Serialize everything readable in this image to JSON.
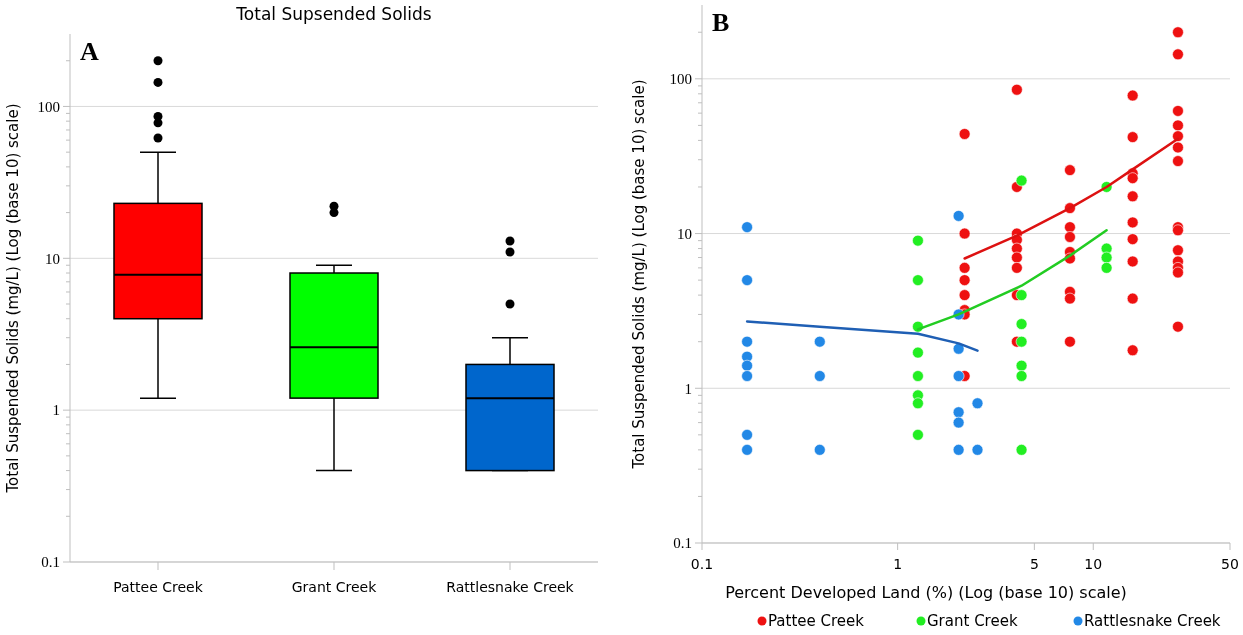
{
  "chart_data": [
    {
      "type": "box",
      "title": "Total Supsended Solids",
      "ylabel": "Total Suspended Solids (mg/L) (Log (base 10) scale)",
      "annotations": [
        "A"
      ],
      "categories": [
        "Pattee Creek",
        "Grant Creek",
        "Rattlesnake Creek"
      ],
      "colors": [
        "#ff0000",
        "#00ff00",
        "#0066cc"
      ],
      "boxes": [
        {
          "low": 1.2,
          "q1": 4,
          "median": 7.8,
          "q3": 23,
          "high": 50,
          "outliers": [
            200,
            144,
            86,
            78,
            62
          ]
        },
        {
          "low": 0.4,
          "q1": 1.2,
          "median": 2.6,
          "q3": 8,
          "high": 9,
          "outliers": [
            22,
            20
          ]
        },
        {
          "low": 0.4,
          "q1": 0.4,
          "median": 1.2,
          "q3": 2,
          "high": 3,
          "outliers": [
            13,
            11,
            5
          ]
        }
      ],
      "log": "y",
      "ylim": [
        0.1,
        300
      ],
      "yticks": [
        0.1,
        {
          "value": 0.2,
          "label": null
        },
        {
          "value": 0.3,
          "label": null
        },
        {
          "value": 0.4,
          "label": null
        },
        {
          "value": 0.5,
          "label": null
        },
        {
          "value": 0.6,
          "label": null
        },
        {
          "value": 0.7,
          "label": null
        },
        {
          "value": 0.8,
          "label": null
        },
        {
          "value": 0.9,
          "label": null
        },
        1,
        {
          "value": 2,
          "label": null
        },
        {
          "value": 3,
          "label": null
        },
        {
          "value": 4,
          "label": null
        },
        {
          "value": 5,
          "label": null
        },
        {
          "value": 6,
          "label": null
        },
        {
          "value": 7,
          "label": null
        },
        {
          "value": 8,
          "label": null
        },
        {
          "value": 9,
          "label": null
        },
        10,
        {
          "value": 20,
          "label": null
        },
        {
          "value": 30,
          "label": null
        },
        {
          "value": 40,
          "label": null
        },
        {
          "value": 50,
          "label": null
        },
        {
          "value": 60,
          "label": null
        },
        {
          "value": 70,
          "label": null
        },
        {
          "value": 80,
          "label": null
        },
        {
          "value": 90,
          "label": null
        },
        100,
        {
          "value": 200,
          "label": null
        }
      ],
      "grid": "y"
    },
    {
      "type": "scatter",
      "annotations": [
        "B"
      ],
      "xlabel": "Percent Developed Land (%) (Log (base 10) scale)",
      "ylabel": "Total Suspended Solids (mg/L) (Log (base 10) scale)",
      "log": "xy",
      "xlim": [
        0.1,
        50
      ],
      "xticks": [
        0.1,
        1,
        5,
        10,
        50
      ],
      "ylim": [
        0.1,
        300
      ],
      "yticks": [
        0.1,
        {
          "value": 0.2,
          "label": null
        },
        {
          "value": 0.3,
          "label": null
        },
        {
          "value": 0.4,
          "label": null
        },
        {
          "value": 0.5,
          "label": null
        },
        {
          "value": 0.6,
          "label": null
        },
        {
          "value": 0.7,
          "label": null
        },
        {
          "value": 0.8,
          "label": null
        },
        {
          "value": 0.9,
          "label": null
        },
        1,
        {
          "value": 2,
          "label": null
        },
        {
          "value": 3,
          "label": null
        },
        {
          "value": 4,
          "label": null
        },
        {
          "value": 5,
          "label": null
        },
        {
          "value": 6,
          "label": null
        },
        {
          "value": 7,
          "label": null
        },
        {
          "value": 8,
          "label": null
        },
        {
          "value": 9,
          "label": null
        },
        10,
        {
          "value": 20,
          "label": null
        },
        {
          "value": 30,
          "label": null
        },
        {
          "value": 40,
          "label": null
        },
        {
          "value": 50,
          "label": null
        },
        {
          "value": 60,
          "label": null
        },
        {
          "value": 70,
          "label": null
        },
        {
          "value": 80,
          "label": null
        },
        {
          "value": 90,
          "label": null
        },
        100,
        {
          "value": 200,
          "label": null
        }
      ],
      "grid": "y",
      "legend": "bottom",
      "series": [
        {
          "name": "Pattee Creek",
          "color": "#ee1111",
          "marker": "circle",
          "x": [
            2.2,
            2.2,
            2.2,
            2.2,
            2.2,
            2.2,
            2.2,
            2.2,
            4.07,
            4.07,
            4.07,
            4.07,
            4.07,
            4.07,
            4.07,
            4.07,
            4.07,
            7.6,
            7.6,
            7.6,
            7.6,
            7.6,
            7.6,
            7.6,
            7.6,
            7.6,
            15.9,
            15.9,
            15.9,
            15.9,
            15.9,
            15.9,
            15.9,
            15.9,
            15.9,
            15.9,
            27.1,
            27.1,
            27.1,
            27.1,
            27.1,
            27.1,
            27.1,
            27.1,
            27.1,
            27.1,
            27.1,
            27.1,
            27.1,
            27.1
          ],
          "values": [
            44,
            10,
            6,
            5,
            4,
            3.2,
            3,
            1.2,
            85,
            20,
            10,
            9.1,
            8,
            7,
            6,
            4,
            2,
            25.7,
            14.6,
            11,
            9.5,
            7.6,
            6.9,
            4.2,
            3.8,
            2,
            78,
            42,
            24.5,
            22.8,
            17.4,
            11.8,
            9.2,
            6.6,
            3.8,
            1.76,
            200,
            144,
            62,
            50,
            42.6,
            36,
            29.4,
            11,
            10.5,
            7.8,
            6.6,
            6,
            5.6,
            2.5
          ]
        },
        {
          "name": "Grant Creek",
          "color": "#22ee22",
          "marker": "circle",
          "x": [
            1.27,
            1.27,
            1.27,
            1.27,
            1.27,
            1.27,
            1.27,
            1.27,
            4.3,
            4.3,
            4.3,
            4.3,
            4.3,
            4.3,
            4.3,
            11.7,
            11.7,
            11.7,
            11.7
          ],
          "values": [
            9,
            5,
            2.5,
            1.7,
            1.2,
            0.9,
            0.8,
            0.5,
            22,
            4,
            2.6,
            2,
            1.4,
            1.2,
            0.4,
            20,
            8,
            7,
            6
          ]
        },
        {
          "name": "Rattlesnake Creek",
          "color": "#2288e6",
          "marker": "circle",
          "x": [
            0.17,
            0.17,
            0.17,
            0.17,
            0.17,
            0.17,
            0.17,
            0.17,
            0.4,
            0.4,
            0.4,
            2.05,
            2.05,
            2.05,
            2.05,
            2.05,
            2.05,
            2.05,
            2.56,
            2.56
          ],
          "values": [
            11,
            5,
            2,
            1.6,
            1.4,
            1.2,
            0.5,
            0.4,
            2,
            1.2,
            0.4,
            13,
            3,
            1.8,
            1.2,
            0.7,
            0.6,
            0.4,
            0.8,
            0.4
          ]
        },
        {
          "type": "line",
          "marker": "none",
          "color": "#dd1111",
          "x": [
            2.2,
            4.07,
            7.6,
            11.7,
            15.9,
            27.1
          ],
          "values": [
            6.9,
            9.7,
            14.6,
            20,
            26,
            41
          ]
        },
        {
          "type": "line",
          "marker": "none",
          "color": "#22cc22",
          "x": [
            1.27,
            2.05,
            4.3,
            7.6,
            11.7
          ],
          "values": [
            2.4,
            3.0,
            4.6,
            7.2,
            10.5
          ]
        },
        {
          "type": "line",
          "marker": "none",
          "color": "#1f5fb4",
          "x": [
            0.17,
            0.4,
            1.27,
            2.05,
            2.56
          ],
          "values": [
            2.7,
            2.5,
            2.25,
            1.95,
            1.75
          ]
        }
      ]
    }
  ]
}
